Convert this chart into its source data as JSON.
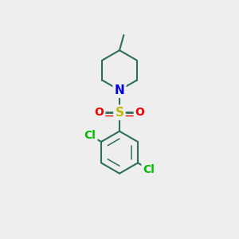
{
  "bg_color": "#eeeeee",
  "bond_color": "#2d6e5e",
  "bond_width": 1.5,
  "N_color": "#0000ee",
  "S_color": "#bbbb00",
  "O_color": "#ee0000",
  "Cl_color": "#00bb00",
  "figsize": [
    3.0,
    3.0
  ],
  "dpi": 100,
  "xlim": [
    0,
    10
  ],
  "ylim": [
    0,
    10
  ]
}
